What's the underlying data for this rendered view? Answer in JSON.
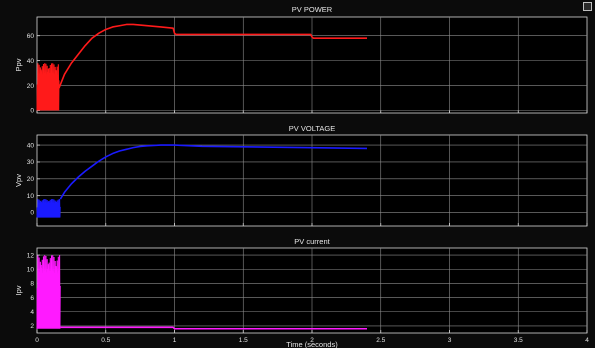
{
  "window": {
    "background": "#0b0b0b",
    "axes_color": "#d9d9d9",
    "grid_color": "#8c8c8c",
    "text_color": "#e6e6e6",
    "corner_icon": "scope-settings-icon"
  },
  "chart_data": [
    {
      "type": "line",
      "title": "PV POWER",
      "ylabel": "Ppv",
      "xlabel": "",
      "xlim": [
        0,
        4
      ],
      "ylim": [
        -2,
        75
      ],
      "yticks": [
        0,
        20,
        40,
        60
      ],
      "xticks": [
        0,
        0.5,
        1,
        1.5,
        2,
        2.5,
        3,
        3.5,
        4
      ],
      "show_xtick_labels": false,
      "grid": true,
      "series": [
        {
          "color": "#ff1a1a",
          "oscillation": {
            "x_end": 0.16,
            "low": 0,
            "high": 38
          },
          "x": [
            0.16,
            0.2,
            0.25,
            0.3,
            0.35,
            0.4,
            0.45,
            0.5,
            0.55,
            0.6,
            0.65,
            0.7,
            0.75,
            0.8,
            0.9,
            0.99,
            1.0,
            1.01,
            1.5,
            1.99,
            2.0,
            2.01,
            2.4
          ],
          "y": [
            18,
            29,
            38,
            45,
            52,
            58,
            62,
            65,
            67,
            68,
            69,
            69,
            68.5,
            68,
            67,
            66,
            62,
            61,
            61,
            61,
            59,
            58,
            58
          ]
        }
      ]
    },
    {
      "type": "line",
      "title": "PV VOLTAGE",
      "ylabel": "Vpv",
      "xlabel": "",
      "xlim": [
        0,
        4
      ],
      "ylim": [
        -8,
        46
      ],
      "yticks": [
        0,
        10,
        20,
        30,
        40
      ],
      "xticks": [
        0,
        0.5,
        1,
        1.5,
        2,
        2.5,
        3,
        3.5,
        4
      ],
      "show_xtick_labels": false,
      "grid": true,
      "series": [
        {
          "color": "#1a1aff",
          "oscillation": {
            "x_end": 0.17,
            "low": -3,
            "high": 8
          },
          "x": [
            0.17,
            0.2,
            0.25,
            0.3,
            0.35,
            0.4,
            0.45,
            0.5,
            0.55,
            0.6,
            0.65,
            0.7,
            0.75,
            0.8,
            0.9,
            1.0,
            1.2,
            1.5,
            2.0,
            2.4
          ],
          "y": [
            8,
            12,
            17,
            21,
            24.5,
            27.5,
            30.5,
            33,
            35,
            36.5,
            37.5,
            38.5,
            39.2,
            39.6,
            40,
            40,
            39.3,
            39,
            38.5,
            38
          ]
        }
      ]
    },
    {
      "type": "line",
      "title": "PV current",
      "ylabel": "Ipv",
      "xlabel": "Time (seconds)",
      "xlim": [
        0,
        4
      ],
      "ylim": [
        1,
        13
      ],
      "yticks": [
        2,
        4,
        6,
        8,
        10,
        12
      ],
      "xticks": [
        0,
        0.5,
        1,
        1.5,
        2,
        2.5,
        3,
        3.5,
        4
      ],
      "xtick_labels": [
        "0",
        "0.5",
        "1",
        "1.5",
        "2",
        "2.5",
        "3",
        "3.5",
        "4"
      ],
      "show_xtick_labels": true,
      "grid": true,
      "series": [
        {
          "color": "#ff1aff",
          "oscillation": {
            "x_end": 0.17,
            "low": 1.6,
            "high": 12
          },
          "x": [
            0.17,
            0.5,
            0.99,
            1.0,
            1.5,
            2.4
          ],
          "y": [
            1.8,
            1.8,
            1.8,
            1.6,
            1.6,
            1.6
          ]
        }
      ]
    }
  ]
}
